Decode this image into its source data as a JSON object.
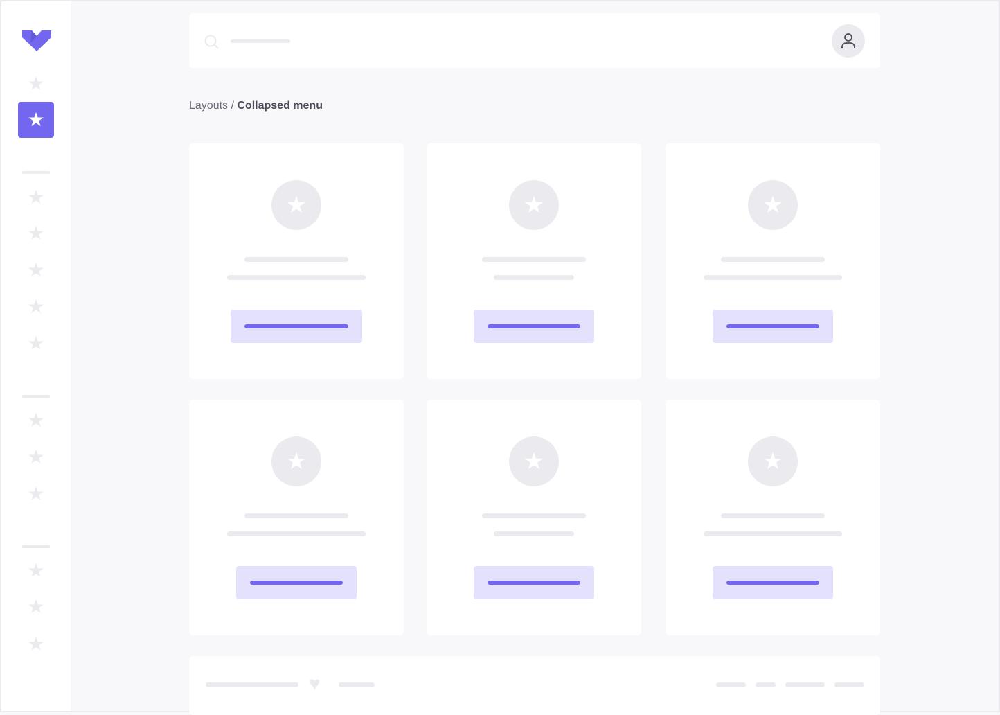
{
  "sidebar": {
    "logo": "vuexy-logo",
    "icons": "star-icon",
    "active_item": 2
  },
  "header": {
    "search_icon": "search-icon",
    "user_icon": "user-icon"
  },
  "breadcrumb": {
    "parent": "Layouts",
    "separator": " / ",
    "current": "Collapsed menu"
  },
  "cards": {
    "count": 6,
    "icon": "star-icon"
  },
  "footer": {
    "icon": "heart-icon"
  },
  "colors": {
    "accent": "#7367f0",
    "accent_light": "#e4e1fc",
    "placeholder": "#ebebef",
    "background": "#f8f8fa"
  }
}
